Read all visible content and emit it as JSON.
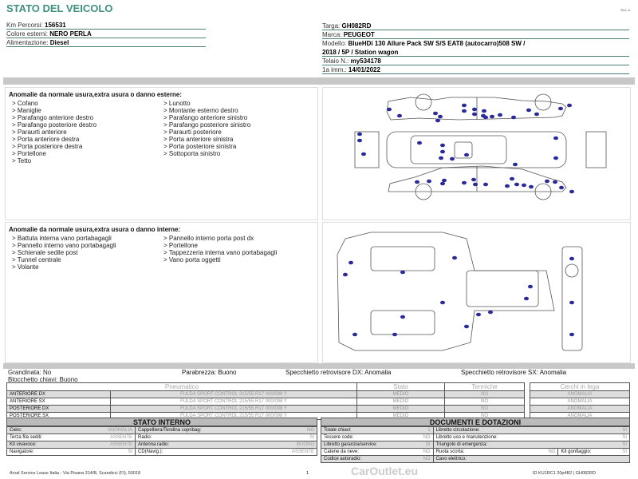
{
  "header": {
    "title": "STATO DEL VEICOLO",
    "rev": "Rev. A"
  },
  "left_info": [
    {
      "label": "Km Percorsi:",
      "value": "156531"
    },
    {
      "label": "Colore esterni:",
      "value": "NERO PERLA"
    },
    {
      "label": "Alimentazione:",
      "value": "Diesel"
    }
  ],
  "right_info": {
    "targa_label": "Targa:",
    "targa": "GH082RD",
    "marca_label": "Marca:",
    "marca": "PEUGEOT",
    "modello_label": "Modello:",
    "modello_1": "BlueHDi 130 Allure Pack SW S/S EAT8 (autocarro)508 SW /",
    "modello_2": "2018 / 5P / Station wagon",
    "telaio_label": "Telaio N.:",
    "telaio": "my534178",
    "imm_label": "1a imm.:",
    "imm": "14/01/2022"
  },
  "exterior": {
    "heading": "Anomalie da normale usura,extra usura o danno esterne:",
    "col1": [
      "> Cofano",
      "> Maniglie",
      "> Parafango anteriore destro",
      "> Parafango posteriore destro",
      "> Paraurti anteriore",
      "> Porta anteriore destra",
      "> Porta posteriore destra",
      "> Portellone",
      "> Tetto"
    ],
    "col2": [
      "> Lunotto",
      "> Montante esterno destro",
      "> Parafango anteriore sinistro",
      "> Parafango posteriore sinistro",
      "> Paraurti posteriore",
      "> Porta anteriore sinistra",
      "> Porta posteriore sinistra",
      "> Sottoporta sinistro"
    ]
  },
  "interior": {
    "heading": "Anomalie da normale usura,extra usura o danno interne:",
    "col1": [
      "> Battuta interna vano portabagagli",
      "> Pannello interno vano portabagagli",
      "> Schienale sedile post",
      "> Tunnel centrale",
      "> Volante"
    ],
    "col2": [
      "> Pannello interno porta post dx",
      "> Portellone",
      "> Tappezzeria interna vano portabagagli",
      "> Vano porta oggetti"
    ]
  },
  "summary": {
    "grandinata": "Grandinata: No",
    "blocchetto": "Blocchetto chiavi: Buono",
    "parabrezza": "Parabrezza: Buono",
    "spec_dx": "Specchietto retrovisore DX: Anomalia",
    "spec_sx": "Specchietto retrovisore SX: Anomalia"
  },
  "tyres": {
    "headers": [
      "Pneumatico",
      "Stato",
      "Termiche"
    ],
    "rim_header": "Cerchi in lega",
    "rows": [
      {
        "pos": "ANTERIORE DX",
        "model": "FULDA SPORT CONTROL 215/55 R17 000/098 Y",
        "stato": "MEDIO",
        "termiche": "NO",
        "cerchi": "ANOMALIA"
      },
      {
        "pos": "ANTERIORE SX",
        "model": "FULDA SPORT CONTROL 215/55 R17 000/098 Y",
        "stato": "MEDIO",
        "termiche": "NO",
        "cerchi": "ANOMALIA"
      },
      {
        "pos": "POSTERIORE DX",
        "model": "FULDA SPORT CONTROL 215/55 R17 000/098 Y",
        "stato": "MEDIO",
        "termiche": "NO",
        "cerchi": "ANOMALIA"
      },
      {
        "pos": "POSTERIORE SX",
        "model": "FULDA SPORT CONTROL 215/55 R17 000/098 Y",
        "stato": "MEDIO",
        "termiche": "NO",
        "cerchi": "ANOMALIA"
      }
    ]
  },
  "stato_interno": {
    "title": "STATO INTERNO",
    "rows": [
      [
        "Cielo:",
        "ANOMALIA",
        "Cappelliera/Tendina copribag:",
        "NO"
      ],
      [
        "Terza fila sedili:",
        "ASSENTE",
        "Radio:",
        "SI"
      ],
      [
        "Kit vivavoce:",
        "ASSENTE",
        "Antenna radio:",
        "BUONO"
      ],
      [
        "Navigatore:",
        "SI",
        "CD(Navig.):",
        "ASSENTE"
      ]
    ]
  },
  "documenti": {
    "title": "DOCUMENTI E DOTAZIONI",
    "rows": [
      [
        "Totale chiavi:",
        "1",
        "Libretto circolazione:",
        "SI"
      ],
      [
        "Tessere code:",
        "NO",
        "Libretto uso e manutenzione:",
        "SI"
      ],
      [
        "Libretto garanzia/service:",
        "SI",
        "Triangolo di emergenza:",
        "SI"
      ],
      [
        "Catene da neve:",
        "NO",
        "Ruota scorta:",
        "NO"
      ],
      [
        "Codice autoradio:",
        "NO",
        "Cavo elettrico:",
        ""
      ]
    ],
    "kit_label": "Kit gonfiaggio:",
    "kit": "SI"
  },
  "footer": {
    "address": "Arval Service Lease Italia - Via Pisana 314/B, Scandicci (FI), 50018",
    "page": "1",
    "id": "ID KU1RC1 20p4B2 | GH082RD",
    "watermark": "CarOutlet.eu"
  }
}
